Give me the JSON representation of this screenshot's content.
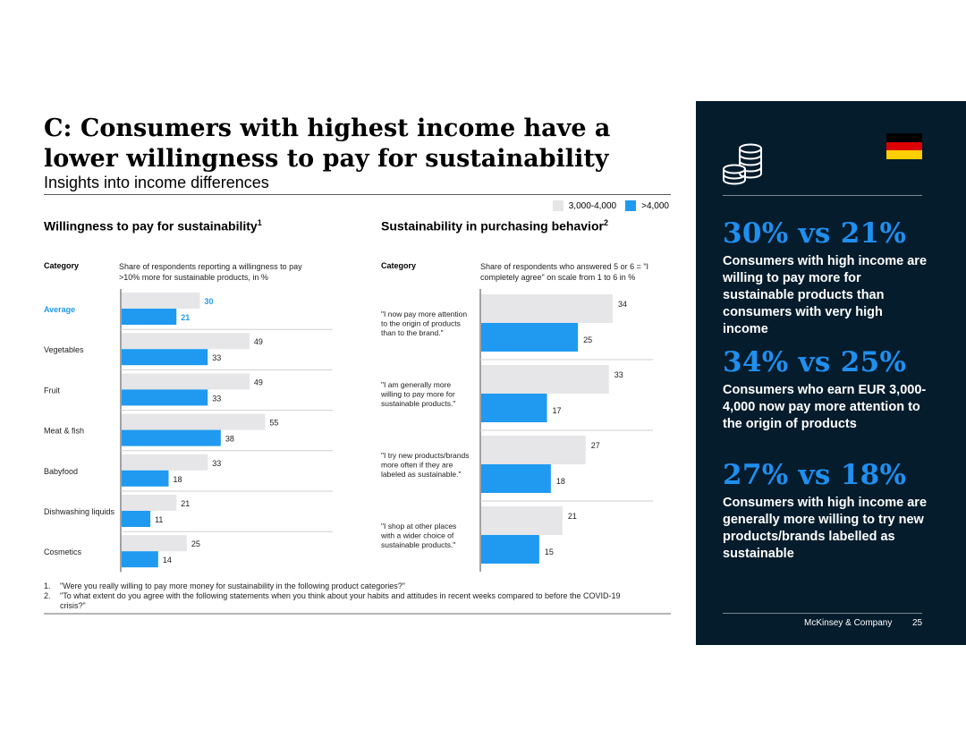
{
  "header": {
    "title": "C: Consumers with highest income have a lower willingness to pay for sustainability",
    "subtitle": "Insights into income differences"
  },
  "legend": [
    {
      "label": "3,000-4,000",
      "color": "#e6e5e8"
    },
    {
      "label": ">4,000",
      "color": "#1f9af0"
    }
  ],
  "colors": {
    "grey": "#e6e5e8",
    "blue": "#1f9af0",
    "highlight": "#1f9af0",
    "panel": "#051c2c"
  },
  "chart_data": [
    {
      "type": "bar",
      "orientation": "horizontal",
      "title": "Willingness to pay for sustainability",
      "title_sup": "1",
      "category_header": "Category",
      "value_header": "Share of respondents reporting a willingness to pay >10% more for sustainable products, in %",
      "categories": [
        "Average",
        "Vegetables",
        "Fruit",
        "Meat & fish",
        "Babyfood",
        "Dishwashing liquids",
        "Cosmetics"
      ],
      "highlight_category": "Average",
      "series": [
        {
          "name": "3,000-4,000",
          "values": [
            30,
            49,
            49,
            55,
            33,
            21,
            25
          ]
        },
        {
          "name": ">4,000",
          "values": [
            21,
            33,
            33,
            38,
            18,
            11,
            14
          ]
        }
      ],
      "xlim": [
        0,
        60
      ]
    },
    {
      "type": "bar",
      "orientation": "horizontal",
      "title": "Sustainability in purchasing behavior",
      "title_sup": "2",
      "category_header": "Category",
      "value_header": "Share of respondents who answered 5 or 6 = \"I completely agree\" on scale from 1 to 6 in %",
      "categories": [
        "\"I now pay more attention to the origin of products than to the brand.\"",
        "\"I am generally more willing to pay more for sustainable products.\"",
        "\"I try new products/brands more often if they are labeled as sustainable.\"",
        "\"I shop at other places with a wider choice of sustainable products.\""
      ],
      "series": [
        {
          "name": "3,000-4,000",
          "values": [
            34,
            33,
            27,
            21
          ]
        },
        {
          "name": ">4,000",
          "values": [
            25,
            17,
            18,
            15
          ]
        }
      ],
      "xlim": [
        0,
        40
      ]
    }
  ],
  "footnotes": [
    {
      "n": "1.",
      "text": "\"Were you really willing to pay more money for sustainability in the following product categories?\""
    },
    {
      "n": "2.",
      "text": "\"To what extent do you agree with the following statements when you think about your habits and attitudes in recent weeks compared to before the COVID-19 crisis?\""
    }
  ],
  "panel": {
    "icon": "coins-icon",
    "flag": "germany-flag",
    "flag_colors": [
      "#000000",
      "#dd0000",
      "#ffce00"
    ],
    "stats": [
      {
        "big": "30% vs 21%",
        "text": "Consumers with high income are willing to pay more for sustainable products than consumers with very high income"
      },
      {
        "big": "34% vs 25%",
        "text": "Consumers who earn EUR 3,000-4,000 now pay more attention to the origin of products"
      },
      {
        "big": "27% vs 18%",
        "text": "Consumers with high income are generally more willing to try new products/brands labelled as sustainable"
      }
    ],
    "brand": "McKinsey & Company",
    "page_number": "25"
  }
}
